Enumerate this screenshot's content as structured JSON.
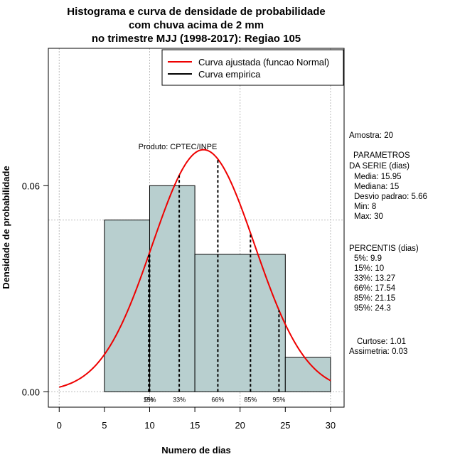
{
  "chart_data": {
    "type": "bar",
    "title": [
      "Histograma e curva de densidade de probabilidade",
      "com chuva acima de 2 mm",
      "no trimestre MJJ (1998-2017): Regiao 105"
    ],
    "xlabel": "Numero de dias",
    "ylabel": "Densidade de probabilidade",
    "xlim": [
      -1.2,
      31.5
    ],
    "ylim": [
      -0.0045,
      0.1
    ],
    "xticks": [
      0,
      5,
      10,
      15,
      20,
      25,
      30
    ],
    "yticks": [
      0.0,
      0.06
    ],
    "ytick_labels": [
      "0.00",
      "0.06"
    ],
    "grid_x": [
      0,
      10,
      20,
      30
    ],
    "grid_y": [
      0,
      0.05,
      0.1
    ],
    "bins": [
      {
        "x0": 5,
        "x1": 10,
        "density": 0.05
      },
      {
        "x0": 10,
        "x1": 15,
        "density": 0.06
      },
      {
        "x0": 15,
        "x1": 25,
        "density": 0.04
      },
      {
        "x0": 25,
        "x1": 30,
        "density": 0.01
      }
    ],
    "normal_curve": {
      "mean": 15.95,
      "sd": 5.66,
      "x_from": 0,
      "x_to": 30
    },
    "percentiles": [
      {
        "label": "5%",
        "value": 9.9
      },
      {
        "label": "15%",
        "value": 10
      },
      {
        "label": "33%",
        "value": 13.27
      },
      {
        "label": "66%",
        "value": 17.54
      },
      {
        "label": "85%",
        "value": 21.15
      },
      {
        "label": "95%",
        "value": 24.3
      }
    ],
    "legend": [
      {
        "label": "Curva ajustada (funcao Normal)",
        "color": "#ee0000"
      },
      {
        "label": "Curva empirica",
        "color": "#000000"
      }
    ],
    "annotation": "Produto: CPTEC/INPE",
    "legend_position": "top-right"
  },
  "side_panel": {
    "sample": "Amostra: 20",
    "params_title_1": "PARAMETROS",
    "params_title_2": "DA SERIE (dias)",
    "media": "Media: 15.95",
    "mediana": "Mediana: 15",
    "desvio": "Desvio padrao: 5.66",
    "min": "Min: 8",
    "max": "Max: 30",
    "pct_title": "PERCENTIS (dias)",
    "p5": "5%: 9.9",
    "p15": "15%: 10",
    "p33": "33%: 13.27",
    "p66": "66%: 17.54",
    "p85": "85%: 21.15",
    "p95": "95%: 24.3",
    "curtose": "Curtose: 1.01",
    "assimetria": "Assimetria: 0.03"
  },
  "colors": {
    "bar_fill": "#b8cfcf",
    "curve": "#ee0000",
    "grid": "#bbbbbb"
  }
}
